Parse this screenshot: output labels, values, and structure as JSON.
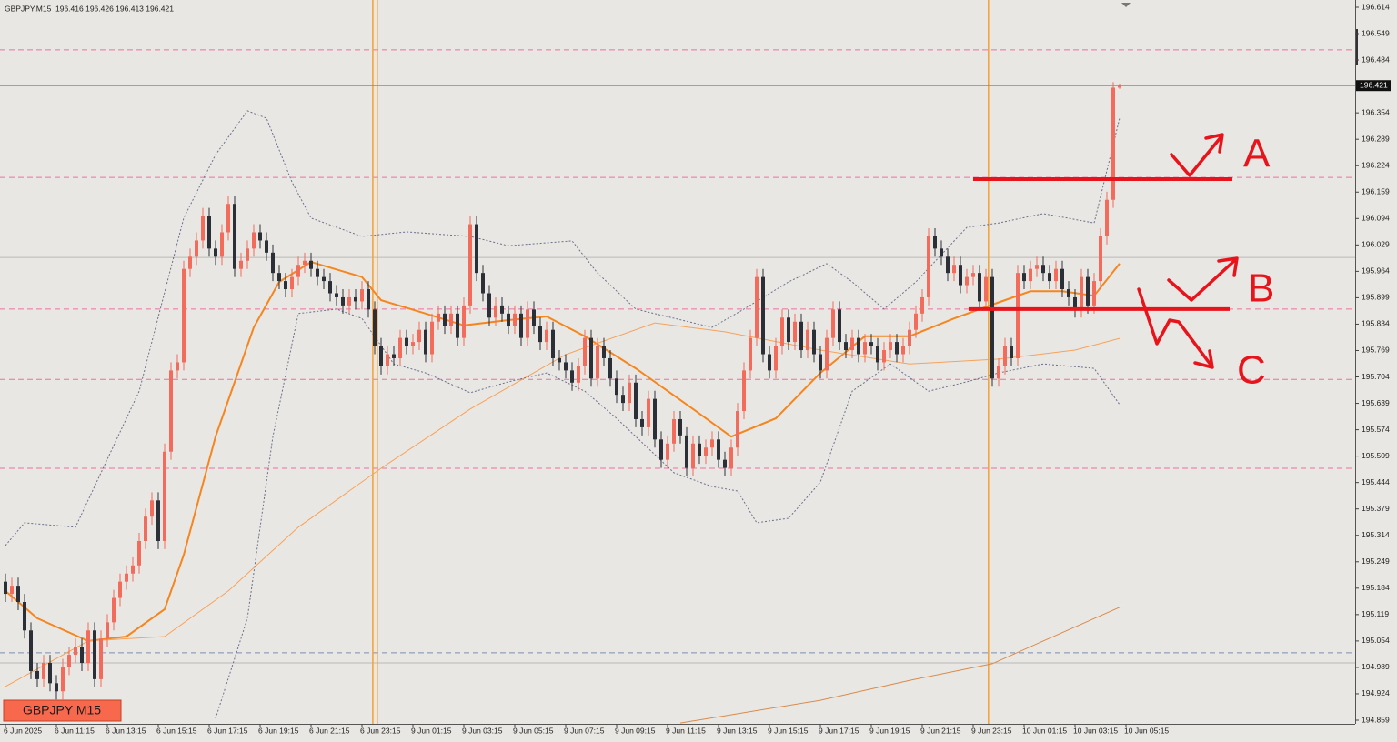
{
  "chart_data": {
    "type": "candlestick",
    "symbol": "GBPJPY,M15",
    "ohlc_text": "196.416 196.426 196.413 196.421",
    "badge": "GBPJPY M15",
    "current_price": 196.421,
    "annotation_labels": [
      "A",
      "B",
      "C"
    ],
    "bull_color": "#f26b5b",
    "bear_color": "#2b3038",
    "ylim": [
      194.859,
      196.614
    ],
    "yticks": [
      196.614,
      196.549,
      196.484,
      196.354,
      196.289,
      196.224,
      196.159,
      196.094,
      196.029,
      195.964,
      195.899,
      195.834,
      195.769,
      195.704,
      195.639,
      195.574,
      195.509,
      195.444,
      195.379,
      195.314,
      195.249,
      195.184,
      195.119,
      195.054,
      194.989,
      194.924,
      194.859
    ],
    "xlim": [
      0,
      176
    ],
    "xticks": [
      {
        "value": 0,
        "label": "6 Jun 2025"
      },
      {
        "value": 8,
        "label": "6 Jun 11:15"
      },
      {
        "value": 16,
        "label": "6 Jun 13:15"
      },
      {
        "value": 24,
        "label": "6 Jun 15:15"
      },
      {
        "value": 32,
        "label": "6 Jun 17:15"
      },
      {
        "value": 40,
        "label": "6 Jun 19:15"
      },
      {
        "value": 48,
        "label": "6 Jun 21:15"
      },
      {
        "value": 56,
        "label": "6 Jun 23:15"
      },
      {
        "value": 64,
        "label": "9 Jun 01:15"
      },
      {
        "value": 72,
        "label": "9 Jun 03:15"
      },
      {
        "value": 80,
        "label": "9 Jun 05:15"
      },
      {
        "value": 88,
        "label": "9 Jun 07:15"
      },
      {
        "value": 96,
        "label": "9 Jun 09:15"
      },
      {
        "value": 104,
        "label": "9 Jun 11:15"
      },
      {
        "value": 112,
        "label": "9 Jun 13:15"
      },
      {
        "value": 120,
        "label": "9 Jun 15:15"
      },
      {
        "value": 128,
        "label": "9 Jun 17:15"
      },
      {
        "value": 136,
        "label": "9 Jun 19:15"
      },
      {
        "value": 144,
        "label": "9 Jun 21:15"
      },
      {
        "value": 152,
        "label": "9 Jun 23:15"
      },
      {
        "value": 160,
        "label": "10 Jun 01:15"
      },
      {
        "value": 168,
        "label": "10 Jun 03:15"
      },
      {
        "value": 176,
        "label": "10 Jun 05:15"
      }
    ],
    "open": [
      195.2,
      195.17,
      195.19,
      195.15,
      195.08,
      194.98,
      194.96,
      195.0,
      194.95,
      194.93,
      194.99,
      195.02,
      195.04,
      195.0,
      195.08,
      194.96,
      195.06,
      195.1,
      195.16,
      195.2,
      195.22,
      195.24,
      195.3,
      195.36,
      195.4,
      195.3,
      195.52,
      195.72,
      195.74,
      195.97,
      196.0,
      196.04,
      196.1,
      196.02,
      196.0,
      196.06,
      196.13,
      195.97,
      195.99,
      196.02,
      196.06,
      196.04,
      196.01,
      195.96,
      195.94,
      195.92,
      195.95,
      195.98,
      195.99,
      195.97,
      195.95,
      195.94,
      195.91,
      195.9,
      195.88,
      195.9,
      195.89,
      195.92,
      195.87,
      195.78,
      195.73,
      195.76,
      195.75,
      195.8,
      195.78,
      195.79,
      195.82,
      195.76,
      195.84,
      195.86,
      195.83,
      195.86,
      195.8,
      195.88,
      196.08,
      195.96,
      195.91,
      195.85,
      195.88,
      195.86,
      195.83,
      195.86,
      195.8,
      195.87,
      195.83,
      195.79,
      195.82,
      195.75,
      195.74,
      195.72,
      195.69,
      195.73,
      195.8,
      195.7,
      195.78,
      195.75,
      195.7,
      195.66,
      195.64,
      195.69,
      195.6,
      195.58,
      195.65,
      195.55,
      195.5,
      195.54,
      195.6,
      195.56,
      195.48,
      195.54,
      195.51,
      195.53,
      195.55,
      195.5,
      195.48,
      195.53,
      195.62,
      195.72,
      195.8,
      195.95,
      195.76,
      195.72,
      195.78,
      195.85,
      195.79,
      195.84,
      195.77,
      195.82,
      195.76,
      195.72,
      195.8,
      195.87,
      195.79,
      195.77,
      195.8,
      195.76,
      195.79,
      195.78,
      195.74,
      195.77,
      195.79,
      195.76,
      195.78,
      195.82,
      195.86,
      195.9,
      196.05,
      196.02,
      196.0,
      195.96,
      195.98,
      195.93,
      195.95,
      195.96,
      195.89,
      195.95,
      195.7,
      195.73,
      195.78,
      195.75,
      195.96,
      195.94,
      195.97,
      195.98,
      195.96,
      195.94,
      195.97,
      195.92,
      195.9,
      195.87,
      195.95,
      195.88,
      195.94,
      196.05,
      196.14,
      196.416
    ],
    "high": [
      195.22,
      195.21,
      195.21,
      195.17,
      195.1,
      195.0,
      195.02,
      195.02,
      194.97,
      195.01,
      195.04,
      195.06,
      195.06,
      195.1,
      195.1,
      195.08,
      195.12,
      195.18,
      195.22,
      195.24,
      195.26,
      195.32,
      195.38,
      195.42,
      195.42,
      195.54,
      195.74,
      195.76,
      195.99,
      196.02,
      196.06,
      196.12,
      196.12,
      196.04,
      196.08,
      196.15,
      196.15,
      196.01,
      196.04,
      196.08,
      196.08,
      196.06,
      196.03,
      195.98,
      195.96,
      195.97,
      196.0,
      196.01,
      196.01,
      195.99,
      195.97,
      195.96,
      195.93,
      195.92,
      195.92,
      195.92,
      195.94,
      195.94,
      195.89,
      195.8,
      195.78,
      195.78,
      195.82,
      195.82,
      195.81,
      195.84,
      195.84,
      195.86,
      195.88,
      195.88,
      195.88,
      195.88,
      195.9,
      196.1,
      196.1,
      195.98,
      195.93,
      195.9,
      195.9,
      195.88,
      195.88,
      195.88,
      195.89,
      195.89,
      195.85,
      195.84,
      195.84,
      195.77,
      195.76,
      195.74,
      195.75,
      195.82,
      195.82,
      195.8,
      195.8,
      195.77,
      195.72,
      195.68,
      195.71,
      195.71,
      195.62,
      195.67,
      195.67,
      195.57,
      195.56,
      195.62,
      195.62,
      195.58,
      195.56,
      195.56,
      195.55,
      195.57,
      195.57,
      195.52,
      195.55,
      195.64,
      195.74,
      195.82,
      195.97,
      195.97,
      195.78,
      195.8,
      195.87,
      195.87,
      195.86,
      195.86,
      195.84,
      195.84,
      195.78,
      195.82,
      195.89,
      195.89,
      195.81,
      195.82,
      195.82,
      195.81,
      195.81,
      195.8,
      195.79,
      195.81,
      195.81,
      195.8,
      195.84,
      195.88,
      195.92,
      196.07,
      196.07,
      196.04,
      196.02,
      196.0,
      196.0,
      195.97,
      195.98,
      195.98,
      195.97,
      195.97,
      195.75,
      195.8,
      195.8,
      195.98,
      195.98,
      195.99,
      196.0,
      196.0,
      195.98,
      195.99,
      195.99,
      195.94,
      195.92,
      195.97,
      195.97,
      195.96,
      196.07,
      196.16,
      196.43,
      196.426
    ],
    "low": [
      195.15,
      195.15,
      195.13,
      195.06,
      194.96,
      194.94,
      194.94,
      194.93,
      194.91,
      194.91,
      194.97,
      195.0,
      194.98,
      194.98,
      194.94,
      194.94,
      195.04,
      195.08,
      195.14,
      195.18,
      195.2,
      195.22,
      195.28,
      195.34,
      195.28,
      195.28,
      195.5,
      195.7,
      195.72,
      195.95,
      195.98,
      196.02,
      196.0,
      195.98,
      195.98,
      196.04,
      195.95,
      195.95,
      195.97,
      196.0,
      196.02,
      195.99,
      195.94,
      195.92,
      195.9,
      195.9,
      195.93,
      195.96,
      195.95,
      195.93,
      195.92,
      195.89,
      195.88,
      195.86,
      195.86,
      195.87,
      195.87,
      195.85,
      195.76,
      195.71,
      195.71,
      195.73,
      195.73,
      195.76,
      195.76,
      195.77,
      195.74,
      195.74,
      195.82,
      195.81,
      195.81,
      195.78,
      195.78,
      195.86,
      195.94,
      195.89,
      195.83,
      195.83,
      195.84,
      195.81,
      195.81,
      195.78,
      195.78,
      195.81,
      195.77,
      195.77,
      195.73,
      195.72,
      195.7,
      195.67,
      195.67,
      195.71,
      195.68,
      195.68,
      195.73,
      195.68,
      195.64,
      195.62,
      195.62,
      195.58,
      195.56,
      195.56,
      195.53,
      195.48,
      195.48,
      195.52,
      195.54,
      195.46,
      195.46,
      195.49,
      195.49,
      195.51,
      195.48,
      195.46,
      195.46,
      195.51,
      195.6,
      195.7,
      195.78,
      195.74,
      195.7,
      195.7,
      195.76,
      195.77,
      195.77,
      195.75,
      195.75,
      195.74,
      195.7,
      195.7,
      195.78,
      195.77,
      195.75,
      195.75,
      195.74,
      195.74,
      195.76,
      195.72,
      195.72,
      195.75,
      195.74,
      195.74,
      195.76,
      195.8,
      195.84,
      195.88,
      196.0,
      195.98,
      195.94,
      195.94,
      195.91,
      195.91,
      195.93,
      195.87,
      195.87,
      195.68,
      195.68,
      195.71,
      195.73,
      195.73,
      195.92,
      195.92,
      195.95,
      195.94,
      195.92,
      195.92,
      195.9,
      195.88,
      195.85,
      195.85,
      195.86,
      195.86,
      195.92,
      196.03,
      196.12,
      196.413
    ],
    "close": [
      195.17,
      195.19,
      195.15,
      195.08,
      194.98,
      194.96,
      195.0,
      194.95,
      194.93,
      194.99,
      195.02,
      195.04,
      195.0,
      195.08,
      194.96,
      195.06,
      195.1,
      195.16,
      195.2,
      195.22,
      195.24,
      195.3,
      195.36,
      195.4,
      195.3,
      195.52,
      195.72,
      195.74,
      195.97,
      196.0,
      196.04,
      196.1,
      196.02,
      196.0,
      196.06,
      196.13,
      195.97,
      195.99,
      196.02,
      196.06,
      196.04,
      196.01,
      195.96,
      195.94,
      195.92,
      195.95,
      195.98,
      195.99,
      195.97,
      195.95,
      195.94,
      195.91,
      195.9,
      195.88,
      195.9,
      195.89,
      195.92,
      195.87,
      195.78,
      195.73,
      195.76,
      195.75,
      195.8,
      195.78,
      195.79,
      195.82,
      195.76,
      195.84,
      195.86,
      195.83,
      195.86,
      195.8,
      195.88,
      196.08,
      195.96,
      195.91,
      195.85,
      195.88,
      195.86,
      195.83,
      195.86,
      195.8,
      195.87,
      195.83,
      195.79,
      195.82,
      195.75,
      195.74,
      195.72,
      195.69,
      195.73,
      195.8,
      195.7,
      195.78,
      195.75,
      195.7,
      195.66,
      195.64,
      195.69,
      195.6,
      195.58,
      195.65,
      195.55,
      195.5,
      195.54,
      195.6,
      195.56,
      195.48,
      195.54,
      195.51,
      195.53,
      195.55,
      195.5,
      195.48,
      195.53,
      195.62,
      195.72,
      195.8,
      195.95,
      195.76,
      195.72,
      195.78,
      195.85,
      195.79,
      195.84,
      195.77,
      195.82,
      195.76,
      195.72,
      195.8,
      195.87,
      195.79,
      195.77,
      195.8,
      195.76,
      195.79,
      195.78,
      195.74,
      195.77,
      195.79,
      195.76,
      195.78,
      195.82,
      195.86,
      195.9,
      196.05,
      196.02,
      196.0,
      195.96,
      195.98,
      195.93,
      195.95,
      195.96,
      195.89,
      195.95,
      195.7,
      195.73,
      195.78,
      195.75,
      195.96,
      195.94,
      195.97,
      195.98,
      195.96,
      195.94,
      195.97,
      195.92,
      195.9,
      195.87,
      195.95,
      195.88,
      195.94,
      196.05,
      196.14,
      196.416,
      196.421
    ],
    "lines": [
      {
        "color": "#f5861f",
        "style": "bold",
        "x": [
          0,
          5,
          13,
          19,
          25,
          28,
          33,
          39,
          43,
          48,
          56,
          59,
          66,
          72,
          79,
          85,
          91,
          99,
          108,
          114,
          121,
          128,
          135,
          142,
          149,
          155,
          161,
          166,
          171,
          175
        ],
        "values": [
          195.177,
          195.11,
          195.054,
          195.065,
          195.132,
          195.266,
          195.557,
          195.826,
          195.938,
          195.987,
          195.95,
          195.893,
          195.86,
          195.831,
          195.844,
          195.853,
          195.804,
          195.725,
          195.625,
          195.557,
          195.602,
          195.714,
          195.804,
          195.804,
          195.848,
          195.882,
          195.915,
          195.915,
          195.904,
          195.983
        ]
      },
      {
        "color": "#f7a25a",
        "style": "thin",
        "x": [
          0,
          13,
          25,
          35,
          46,
          59,
          73,
          88,
          102,
          113,
          128,
          142,
          156,
          168,
          175
        ],
        "values": [
          194.942,
          195.054,
          195.065,
          195.177,
          195.334,
          195.479,
          195.625,
          195.759,
          195.837,
          195.815,
          195.77,
          195.736,
          195.748,
          195.77,
          195.799
        ]
      },
      {
        "color": "#d98a4a",
        "style": "thin",
        "x": [
          106,
          128,
          142,
          155,
          163,
          175
        ],
        "values": [
          194.852,
          194.908,
          194.957,
          194.998,
          195.054,
          195.137
        ]
      },
      {
        "color": "#6a6f8c",
        "style": "dotted",
        "x": [
          0,
          3,
          11,
          21,
          28,
          33,
          38,
          41,
          45,
          48,
          56,
          63,
          73,
          79,
          89,
          93,
          99,
          111,
          116,
          123,
          129,
          133,
          138,
          143,
          151,
          156,
          163,
          171,
          175
        ],
        "values": [
          195.289,
          195.345,
          195.334,
          195.669,
          196.095,
          196.251,
          196.359,
          196.341,
          196.184,
          196.095,
          196.05,
          196.061,
          196.05,
          196.027,
          196.039,
          195.96,
          195.871,
          195.826,
          195.871,
          195.938,
          195.983,
          195.938,
          195.871,
          195.938,
          196.072,
          196.083,
          196.106,
          196.083,
          196.341
        ]
      },
      {
        "color": "#6a6f8c",
        "style": "dotted",
        "x": [
          33,
          38,
          42,
          46,
          52,
          56,
          61,
          66,
          73,
          79,
          85,
          91,
          96,
          105,
          111,
          115,
          118,
          123,
          128,
          133,
          139,
          145,
          151,
          156,
          163,
          171,
          175
        ],
        "values": [
          194.863,
          195.11,
          195.557,
          195.86,
          195.871,
          195.848,
          195.736,
          195.714,
          195.665,
          195.692,
          195.714,
          195.669,
          195.602,
          195.468,
          195.434,
          195.423,
          195.345,
          195.356,
          195.445,
          195.669,
          195.736,
          195.669,
          195.692,
          195.714,
          195.736,
          195.725,
          195.636
        ]
      }
    ],
    "levels": [
      {
        "value": 196.509,
        "color": "#ef6fa0",
        "style": "dashed"
      },
      {
        "value": 196.195,
        "color": "#ef6fa0",
        "style": "dashed"
      },
      {
        "value": 195.871,
        "color": "#ef6fa0",
        "style": "dashed"
      },
      {
        "value": 195.698,
        "color": "#ef6fa0",
        "style": "dashed"
      },
      {
        "value": 195.479,
        "color": "#ef6fa0",
        "style": "dashed"
      },
      {
        "value": 195.998,
        "color": "#b9b9b9",
        "style": "solid"
      },
      {
        "value": 195.0,
        "color": "#b9b9b9",
        "style": "solid"
      },
      {
        "value": 195.025,
        "color": "#7d8fb3",
        "style": "dashed"
      }
    ],
    "vlines": [
      57.7,
      58.4,
      154.4
    ],
    "drawn_levels": [
      196.191,
      195.871
    ]
  }
}
